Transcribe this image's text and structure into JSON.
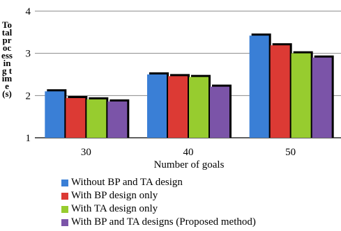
{
  "chart_data": {
    "type": "bar",
    "categories": [
      "30",
      "40",
      "50"
    ],
    "series": [
      {
        "name": "Without BP and TA design",
        "values": [
          2.1,
          2.5,
          3.42
        ],
        "color": "#3a7fd6"
      },
      {
        "name": "With BP design only",
        "values": [
          1.94,
          2.46,
          3.19
        ],
        "color": "#dc3a34"
      },
      {
        "name": "With TA design only",
        "values": [
          1.91,
          2.44,
          3.0
        ],
        "color": "#97cc2f"
      },
      {
        "name": "With BP and TA designs (Proposed method)",
        "values": [
          1.86,
          2.21,
          2.9
        ],
        "color": "#7b54a8"
      }
    ],
    "xlabel": "Number of goals",
    "ylabel": "Total processing time (s)",
    "ylim": [
      1,
      4
    ],
    "yticks": [
      "1",
      "2",
      "3",
      "4"
    ],
    "grid": true,
    "legend_position": "bottom"
  }
}
